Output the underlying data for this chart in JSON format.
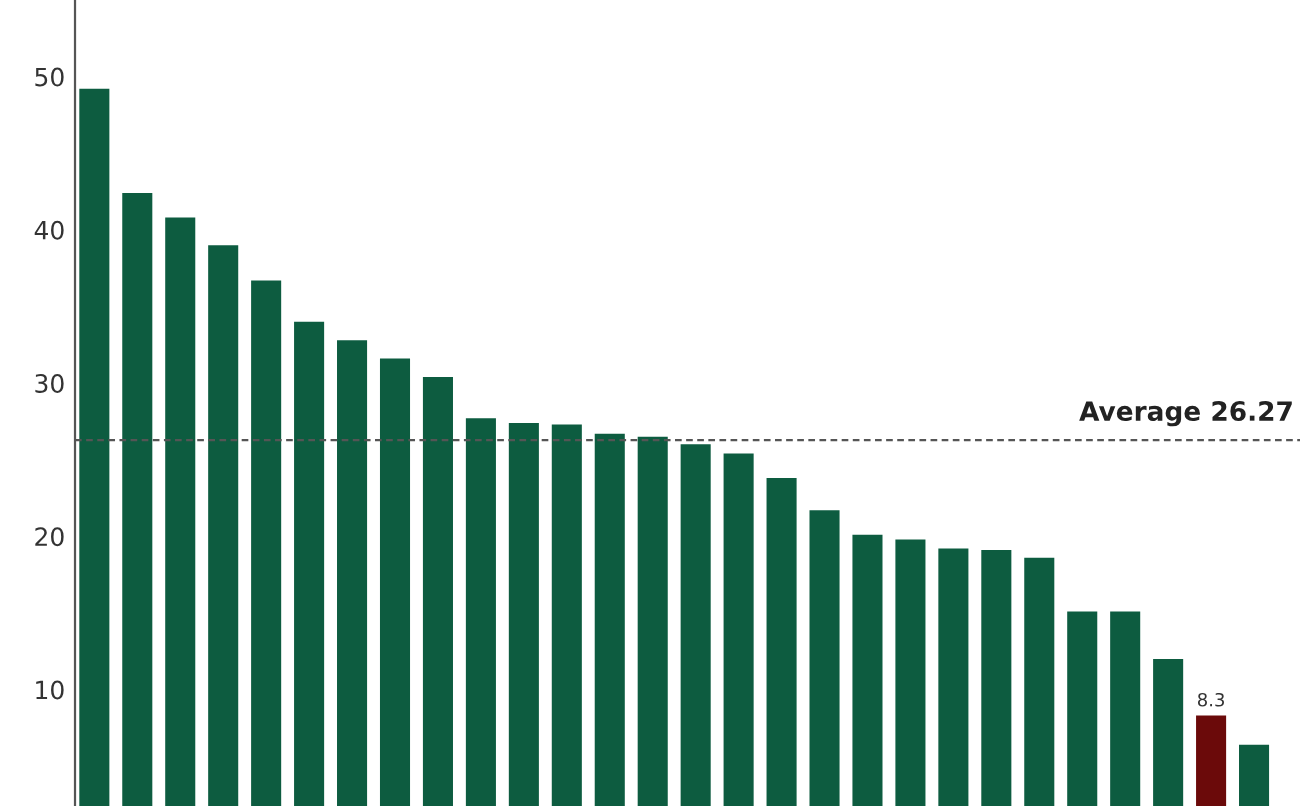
{
  "chart_data": {
    "type": "bar",
    "categories": [
      null,
      null,
      null,
      null,
      null,
      null,
      null,
      null,
      null,
      null,
      null,
      null,
      null,
      null,
      null,
      null,
      null,
      null,
      null,
      null,
      null,
      null,
      null,
      null,
      null,
      null,
      null,
      null
    ],
    "values": [
      49.2,
      42.4,
      40.8,
      39.0,
      36.7,
      34.0,
      32.8,
      31.6,
      30.4,
      27.7,
      27.4,
      27.3,
      26.7,
      26.5,
      26.0,
      25.4,
      23.8,
      21.7,
      20.1,
      19.8,
      19.2,
      19.1,
      18.6,
      15.1,
      15.1,
      12.0,
      8.3,
      6.4
    ],
    "colors": [
      "#0d5c40",
      "#0d5c40",
      "#0d5c40",
      "#0d5c40",
      "#0d5c40",
      "#0d5c40",
      "#0d5c40",
      "#0d5c40",
      "#0d5c40",
      "#0d5c40",
      "#0d5c40",
      "#0d5c40",
      "#0d5c40",
      "#0d5c40",
      "#0d5c40",
      "#0d5c40",
      "#0d5c40",
      "#0d5c40",
      "#0d5c40",
      "#0d5c40",
      "#0d5c40",
      "#0d5c40",
      "#0d5c40",
      "#0d5c40",
      "#0d5c40",
      "#0d5c40",
      "#6b0a0a",
      "#0d5c40"
    ],
    "value_labels": [
      null,
      null,
      null,
      null,
      null,
      null,
      null,
      null,
      null,
      null,
      null,
      null,
      null,
      null,
      null,
      null,
      null,
      null,
      null,
      null,
      null,
      null,
      null,
      null,
      null,
      null,
      "8.3",
      null
    ],
    "ylim": [
      2.4,
      55
    ],
    "yticks": [
      10,
      20,
      30,
      40,
      50
    ],
    "ref_lines": [
      {
        "axis": "y",
        "value": 26.27,
        "label": "Average 26.27",
        "color": "#555555",
        "line_style": "dashed"
      }
    ],
    "tick_labels": "y",
    "grid": false
  }
}
